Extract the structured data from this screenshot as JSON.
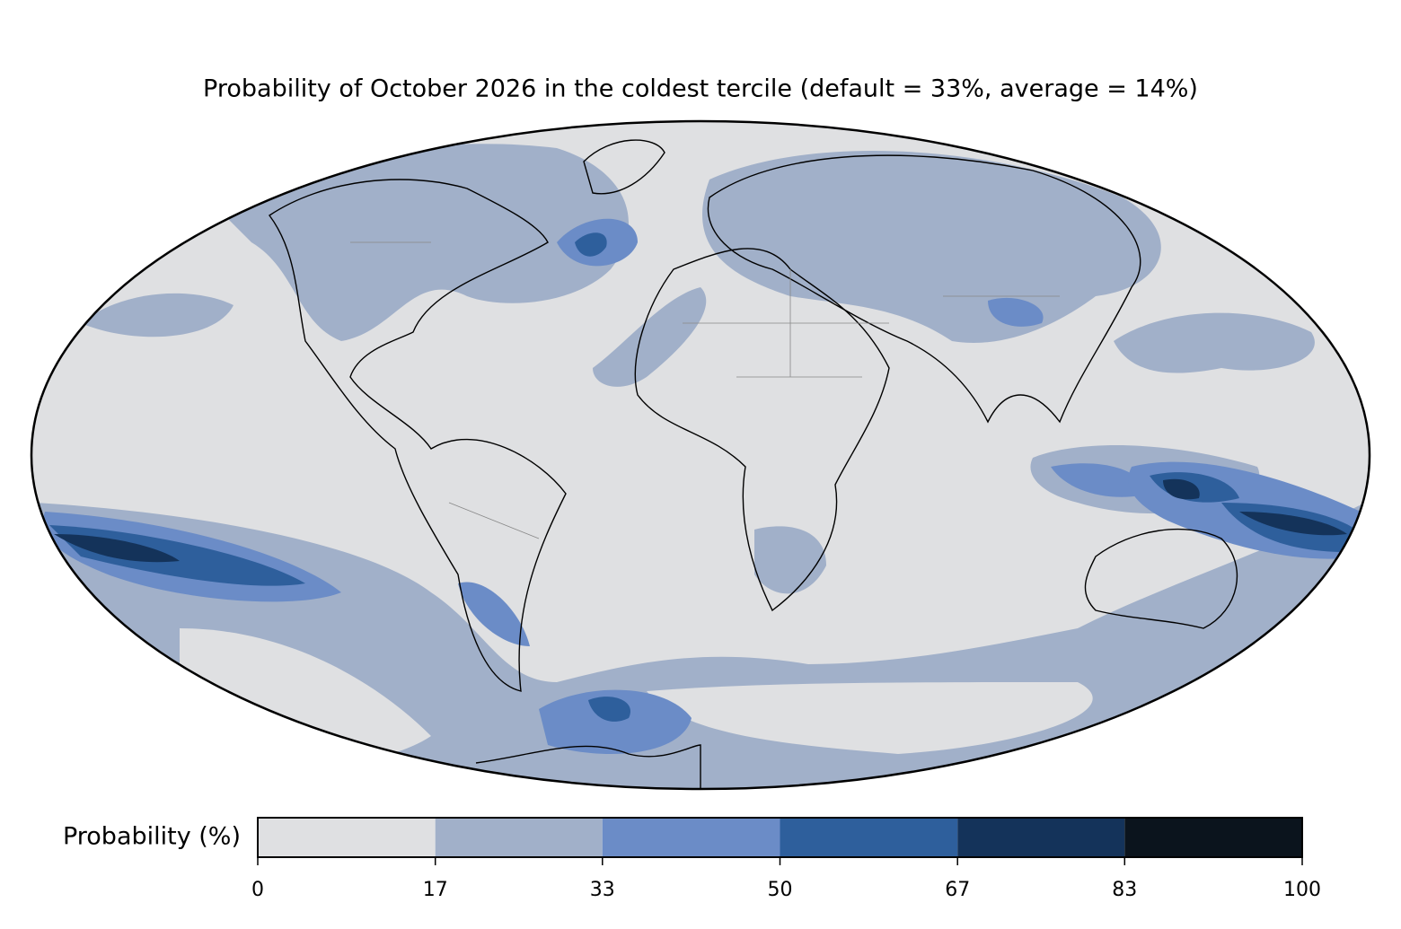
{
  "title": "Probability of October 2026 in the coldest tercile (default = 33%, average = 14%)",
  "colorbar": {
    "label": "Probability (%)",
    "lim": [
      0,
      100
    ],
    "ticks": [
      0,
      17,
      33,
      50,
      67,
      83,
      100
    ],
    "colors": [
      "#dfe0e2",
      "#a1b0c9",
      "#6b8cc7",
      "#2e5f9c",
      "#14335a",
      "#0b141d"
    ]
  }
}
